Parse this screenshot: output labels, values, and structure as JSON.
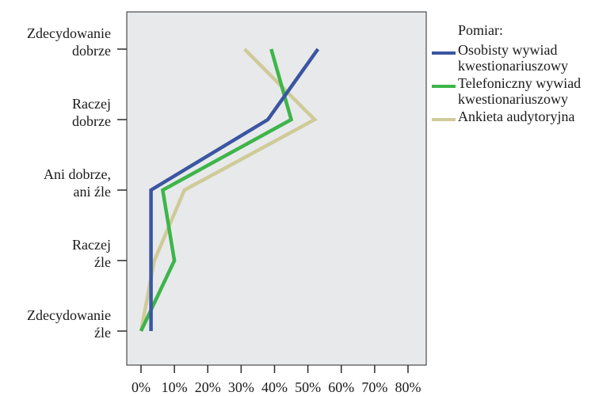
{
  "chart_data": {
    "type": "line",
    "orientation": "horizontal",
    "categories": [
      "Zdecydowanie dobrze",
      "Raczej dobrze",
      "Ani dobrze, ani źle",
      "Raczej źle",
      "Zdecydowanie źle"
    ],
    "category_labels": [
      [
        "Zdecydowanie",
        "dobrze"
      ],
      [
        "Raczej",
        "dobrze"
      ],
      [
        "Ani dobrze,",
        "ani źle"
      ],
      [
        "Raczej",
        "źle"
      ],
      [
        "Zdecydowanie",
        "źle"
      ]
    ],
    "x_ticks": [
      "0%",
      "10%",
      "20%",
      "30%",
      "40%",
      "50%",
      "60%",
      "70%",
      "80%"
    ],
    "xlim": [
      0,
      80
    ],
    "x_unit": "%",
    "grid": false,
    "legend_position": "right",
    "legend_title": "Pomiar:",
    "series": [
      {
        "name": "Osobisty wywiad kwestionariuszowy",
        "color": "#3a56a2",
        "values": [
          53,
          38,
          3,
          3,
          3
        ]
      },
      {
        "name": "Telefoniczny wywiad kwestionariuszowy",
        "color": "#3db54a",
        "values": [
          39,
          45,
          6.5,
          10,
          0
        ]
      },
      {
        "name": "Ankieta audytoryjna",
        "color": "#cfcb98",
        "values": [
          31,
          52,
          13,
          4,
          0
        ]
      }
    ],
    "plot_background": "#e8e9eb"
  }
}
